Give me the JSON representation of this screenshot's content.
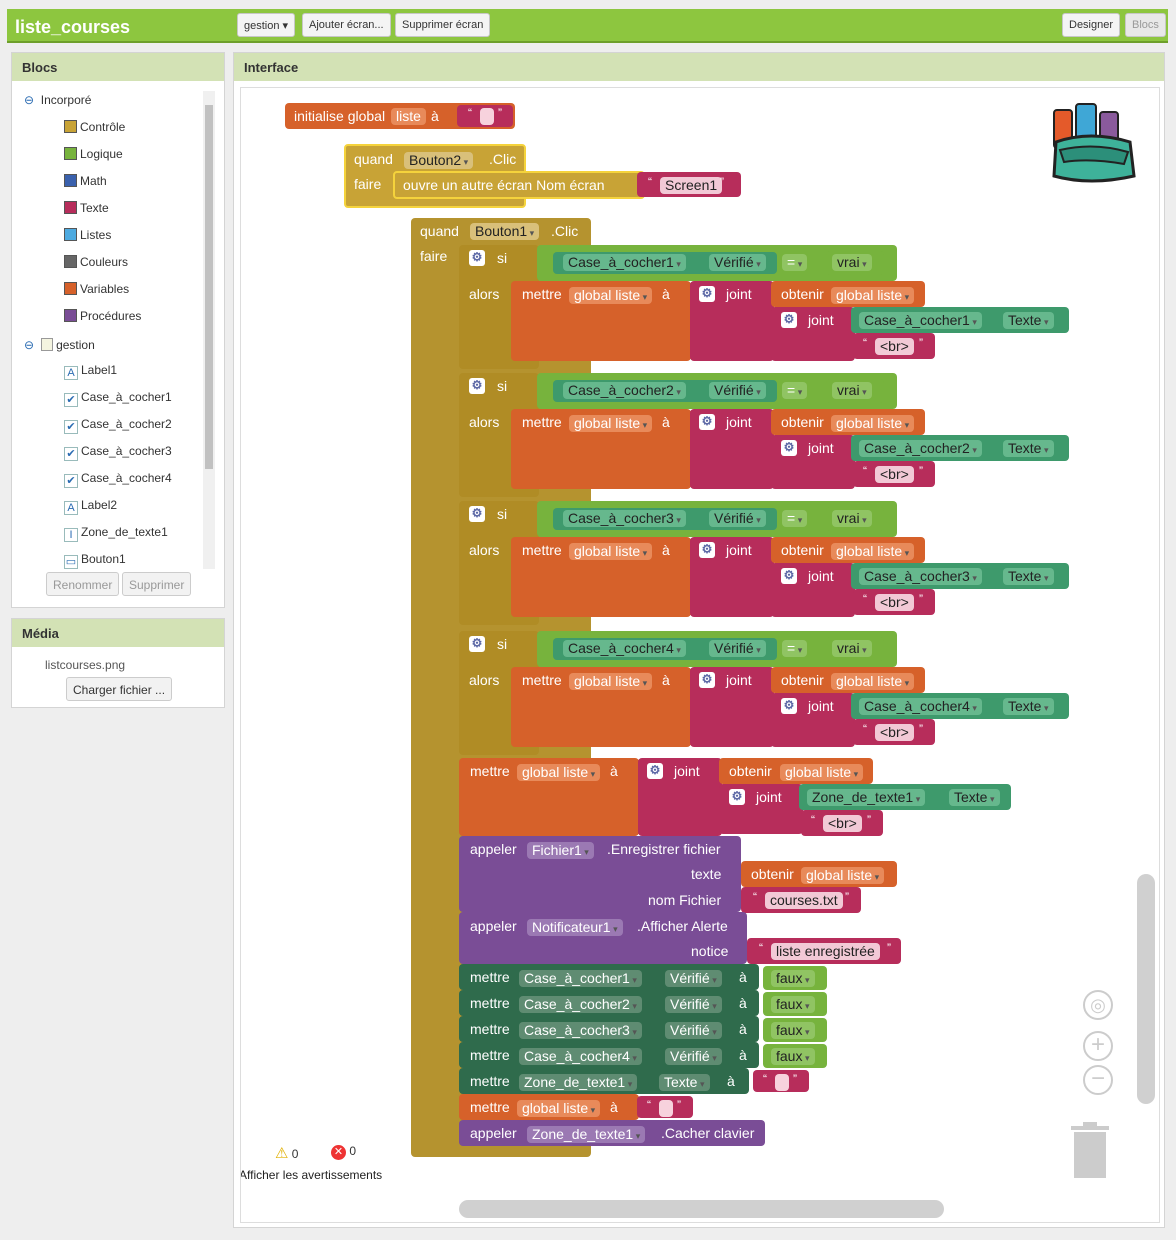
{
  "app": {
    "title": "liste_courses",
    "screen_menu": "gestion ▾",
    "add_screen": "Ajouter écran...",
    "remove_screen": "Supprimer écran",
    "designer": "Designer",
    "blocks": "Blocs"
  },
  "blocks_panel": {
    "title": "Blocs",
    "builtin": "Incorporé",
    "builtin_items": [
      {
        "label": "Contrôle",
        "color": "#c8a336"
      },
      {
        "label": "Logique",
        "color": "#77b33d"
      },
      {
        "label": "Math",
        "color": "#3a61ad"
      },
      {
        "label": "Texte",
        "color": "#b72d5b"
      },
      {
        "label": "Listes",
        "color": "#4daae0"
      },
      {
        "label": "Couleurs",
        "color": "#666666"
      },
      {
        "label": "Variables",
        "color": "#d6612a"
      },
      {
        "label": "Procédures",
        "color": "#7a4d96"
      }
    ],
    "screen": "gestion",
    "components": [
      {
        "label": "Label1",
        "icon": "A"
      },
      {
        "label": "Case_à_cocher1",
        "icon": "✔"
      },
      {
        "label": "Case_à_cocher2",
        "icon": "✔"
      },
      {
        "label": "Case_à_cocher3",
        "icon": "✔"
      },
      {
        "label": "Case_à_cocher4",
        "icon": "✔"
      },
      {
        "label": "Label2",
        "icon": "A"
      },
      {
        "label": "Zone_de_texte1",
        "icon": "I"
      },
      {
        "label": "Bouton1",
        "icon": "▭"
      }
    ],
    "rename": "Renommer",
    "delete": "Supprimer"
  },
  "media": {
    "title": "Média",
    "file": "listcourses.png",
    "upload": "Charger fichier ..."
  },
  "workspace": {
    "title": "Interface",
    "warnings": "0",
    "errors": "0",
    "show_warnings": "Afficher les avertissements"
  },
  "code": {
    "init": {
      "label": "initialise global",
      "name": "liste",
      "to": "à"
    },
    "ev2": {
      "when": "quand",
      "comp": "Bouton2",
      "event": ".Clic",
      "do": "faire",
      "action": "ouvre un autre écran  Nom écran",
      "screen": "Screen1"
    },
    "ev1": {
      "when": "quand",
      "comp": "Bouton1",
      "event": ".Clic",
      "do": "faire"
    },
    "kw": {
      "si": "si",
      "alors": "alors",
      "mettre": "mettre",
      "a": "à",
      "joint": "joint",
      "obtenir": "obtenir",
      "gl": "global liste",
      "checked": "Vérifié",
      "eq": "=",
      "true": "vrai",
      "false": "faux",
      "text": "Texte",
      "br": "<br>",
      "call": "appeler"
    },
    "checks": [
      "Case_à_cocher1",
      "Case_à_cocher2",
      "Case_à_cocher3",
      "Case_à_cocher4"
    ],
    "tb": "Zone_de_texte1",
    "save": {
      "comp": "Fichier1",
      "method": ".Enregistrer fichier",
      "text_arg": "texte",
      "name_arg": "nom Fichier",
      "filename": "courses.txt"
    },
    "alert": {
      "comp": "Notificateur1",
      "method": ".Afficher Alerte",
      "arg": "notice",
      "msg": "liste enregistrée"
    },
    "hide": {
      "method": ".Cacher clavier"
    }
  }
}
